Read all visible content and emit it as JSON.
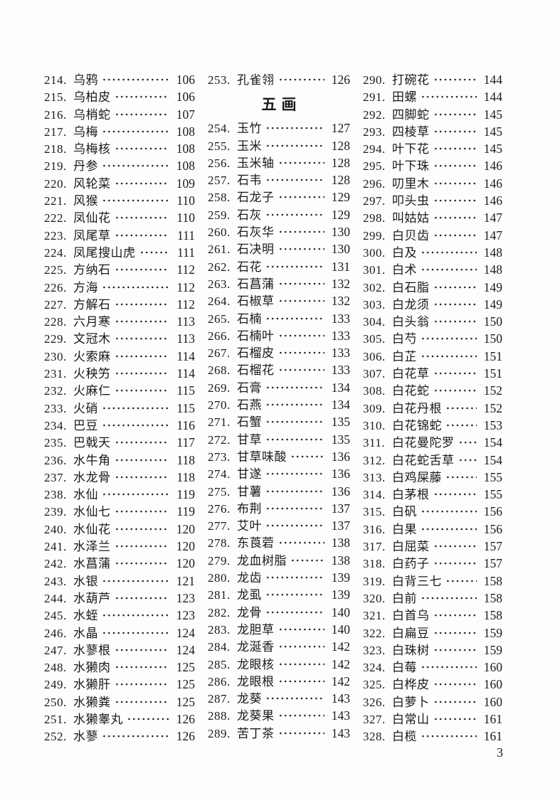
{
  "page": {
    "number": "3"
  },
  "colors": {
    "ink": "#1a1a1a",
    "paper": "#fdfdfd"
  },
  "section": {
    "header": "五画"
  },
  "columns": [
    {
      "items": [
        {
          "no": "214.",
          "name": "乌鸦",
          "page": "106"
        },
        {
          "no": "215.",
          "name": "乌柏皮",
          "page": "106"
        },
        {
          "no": "216.",
          "name": "乌梢蛇",
          "page": "107"
        },
        {
          "no": "217.",
          "name": "乌梅",
          "page": "108"
        },
        {
          "no": "218.",
          "name": "乌梅核",
          "page": "108"
        },
        {
          "no": "219.",
          "name": "丹参",
          "page": "108"
        },
        {
          "no": "220.",
          "name": "风轮菜",
          "page": "109"
        },
        {
          "no": "221.",
          "name": "风猴",
          "page": "110"
        },
        {
          "no": "222.",
          "name": "凤仙花",
          "page": "110"
        },
        {
          "no": "223.",
          "name": "凤尾草",
          "page": "111"
        },
        {
          "no": "224.",
          "name": "凤尾搜山虎",
          "page": "111"
        },
        {
          "no": "225.",
          "name": "方纳石",
          "page": "112"
        },
        {
          "no": "226.",
          "name": "方海",
          "page": "112"
        },
        {
          "no": "227.",
          "name": "方解石",
          "page": "112"
        },
        {
          "no": "228.",
          "name": "六月寒",
          "page": "113"
        },
        {
          "no": "229.",
          "name": "文冠木",
          "page": "113"
        },
        {
          "no": "230.",
          "name": "火索麻",
          "page": "114"
        },
        {
          "no": "231.",
          "name": "火秧竻",
          "page": "114"
        },
        {
          "no": "232.",
          "name": "火麻仁",
          "page": "115"
        },
        {
          "no": "233.",
          "name": "火硝",
          "page": "115"
        },
        {
          "no": "234.",
          "name": "巴豆",
          "page": "116"
        },
        {
          "no": "235.",
          "name": "巴戟天",
          "page": "117"
        },
        {
          "no": "236.",
          "name": "水牛角",
          "page": "118"
        },
        {
          "no": "237.",
          "name": "水龙骨",
          "page": "118"
        },
        {
          "no": "238.",
          "name": "水仙",
          "page": "119"
        },
        {
          "no": "239.",
          "name": "水仙七",
          "page": "119"
        },
        {
          "no": "240.",
          "name": "水仙花",
          "page": "120"
        },
        {
          "no": "241.",
          "name": "水泽兰",
          "page": "120"
        },
        {
          "no": "242.",
          "name": "水菖蒲",
          "page": "120"
        },
        {
          "no": "243.",
          "name": "水银",
          "page": "121"
        },
        {
          "no": "244.",
          "name": "水葫芦",
          "page": "123"
        },
        {
          "no": "245.",
          "name": "水蛭",
          "page": "123"
        },
        {
          "no": "246.",
          "name": "水晶",
          "page": "124"
        },
        {
          "no": "247.",
          "name": "水蓼根",
          "page": "124"
        },
        {
          "no": "248.",
          "name": "水獭肉",
          "page": "125"
        },
        {
          "no": "249.",
          "name": "水獭肝",
          "page": "125"
        },
        {
          "no": "250.",
          "name": "水獭粪",
          "page": "125"
        },
        {
          "no": "251.",
          "name": "水獭睾丸",
          "page": "126"
        },
        {
          "no": "252.",
          "name": "水蓼",
          "page": "126"
        }
      ]
    },
    {
      "items": [
        {
          "no": "253.",
          "name": "孔雀翎",
          "page": "126"
        },
        {
          "section": "五画"
        },
        {
          "no": "254.",
          "name": "玉竹",
          "page": "127"
        },
        {
          "no": "255.",
          "name": "玉米",
          "page": "128"
        },
        {
          "no": "256.",
          "name": "玉米轴",
          "page": "128"
        },
        {
          "no": "257.",
          "name": "石韦",
          "page": "128"
        },
        {
          "no": "258.",
          "name": "石龙子",
          "page": "129"
        },
        {
          "no": "259.",
          "name": "石灰",
          "page": "129"
        },
        {
          "no": "260.",
          "name": "石灰华",
          "page": "130"
        },
        {
          "no": "261.",
          "name": "石决明",
          "page": "130"
        },
        {
          "no": "262.",
          "name": "石花",
          "page": "131"
        },
        {
          "no": "263.",
          "name": "石菖蒲",
          "page": "132"
        },
        {
          "no": "264.",
          "name": "石椒草",
          "page": "132"
        },
        {
          "no": "265.",
          "name": "石楠",
          "page": "133"
        },
        {
          "no": "266.",
          "name": "石楠叶",
          "page": "133"
        },
        {
          "no": "267.",
          "name": "石榴皮",
          "page": "133"
        },
        {
          "no": "268.",
          "name": "石榴花",
          "page": "133"
        },
        {
          "no": "269.",
          "name": "石膏",
          "page": "134"
        },
        {
          "no": "270.",
          "name": "石燕",
          "page": "134"
        },
        {
          "no": "271.",
          "name": "石蟹",
          "page": "135"
        },
        {
          "no": "272.",
          "name": "甘草",
          "page": "135"
        },
        {
          "no": "273.",
          "name": "甘草味酸",
          "page": "136"
        },
        {
          "no": "274.",
          "name": "甘遂",
          "page": "136"
        },
        {
          "no": "275.",
          "name": "甘薯",
          "page": "136"
        },
        {
          "no": "276.",
          "name": "布荆",
          "page": "137"
        },
        {
          "no": "277.",
          "name": "艾叶",
          "page": "137"
        },
        {
          "no": "278.",
          "name": "东莨菪",
          "page": "138"
        },
        {
          "no": "279.",
          "name": "龙血树脂",
          "page": "138"
        },
        {
          "no": "280.",
          "name": "龙齿",
          "page": "139"
        },
        {
          "no": "281.",
          "name": "龙虱",
          "page": "139"
        },
        {
          "no": "282.",
          "name": "龙骨",
          "page": "140"
        },
        {
          "no": "283.",
          "name": "龙胆草",
          "page": "140"
        },
        {
          "no": "284.",
          "name": "龙涎香",
          "page": "142"
        },
        {
          "no": "285.",
          "name": "龙眼核",
          "page": "142"
        },
        {
          "no": "286.",
          "name": "龙眼根",
          "page": "142"
        },
        {
          "no": "287.",
          "name": "龙葵",
          "page": "143"
        },
        {
          "no": "288.",
          "name": "龙葵果",
          "page": "143"
        },
        {
          "no": "289.",
          "name": "苦丁茶",
          "page": "143"
        }
      ]
    },
    {
      "items": [
        {
          "no": "290.",
          "name": "打碗花",
          "page": "144"
        },
        {
          "no": "291.",
          "name": "田螺",
          "page": "144"
        },
        {
          "no": "292.",
          "name": "四脚蛇",
          "page": "145"
        },
        {
          "no": "293.",
          "name": "四棱草",
          "page": "145"
        },
        {
          "no": "294.",
          "name": "叶下花",
          "page": "145"
        },
        {
          "no": "295.",
          "name": "叶下珠",
          "page": "146"
        },
        {
          "no": "296.",
          "name": "叨里木",
          "page": "146"
        },
        {
          "no": "297.",
          "name": "叩头虫",
          "page": "146"
        },
        {
          "no": "298.",
          "name": "叫姑姑",
          "page": "147"
        },
        {
          "no": "299.",
          "name": "白贝齿",
          "page": "147"
        },
        {
          "no": "300.",
          "name": "白及",
          "page": "148"
        },
        {
          "no": "301.",
          "name": "白术",
          "page": "148"
        },
        {
          "no": "302.",
          "name": "白石脂",
          "page": "149"
        },
        {
          "no": "303.",
          "name": "白龙须",
          "page": "149"
        },
        {
          "no": "304.",
          "name": "白头翁",
          "page": "150"
        },
        {
          "no": "305.",
          "name": "白芍",
          "page": "150"
        },
        {
          "no": "306.",
          "name": "白芷",
          "page": "151"
        },
        {
          "no": "307.",
          "name": "白花草",
          "page": "151"
        },
        {
          "no": "308.",
          "name": "白花蛇",
          "page": "152"
        },
        {
          "no": "309.",
          "name": "白花丹根",
          "page": "152"
        },
        {
          "no": "310.",
          "name": "白花锦蛇",
          "page": "153"
        },
        {
          "no": "311.",
          "name": "白花曼陀罗",
          "page": "154"
        },
        {
          "no": "312.",
          "name": "白花蛇舌草",
          "page": "154"
        },
        {
          "no": "313.",
          "name": "白鸡屎藤",
          "page": "155"
        },
        {
          "no": "314.",
          "name": "白茅根",
          "page": "155"
        },
        {
          "no": "315.",
          "name": "白矾",
          "page": "156"
        },
        {
          "no": "316.",
          "name": "白果",
          "page": "156"
        },
        {
          "no": "317.",
          "name": "白屈菜",
          "page": "157"
        },
        {
          "no": "318.",
          "name": "白药子",
          "page": "157"
        },
        {
          "no": "319.",
          "name": "白背三七",
          "page": "158"
        },
        {
          "no": "320.",
          "name": "白前",
          "page": "158"
        },
        {
          "no": "321.",
          "name": "白首乌",
          "page": "158"
        },
        {
          "no": "322.",
          "name": "白扁豆",
          "page": "159"
        },
        {
          "no": "323.",
          "name": "白珠树",
          "page": "159"
        },
        {
          "no": "324.",
          "name": "白莓",
          "page": "160"
        },
        {
          "no": "325.",
          "name": "白桦皮",
          "page": "160"
        },
        {
          "no": "326.",
          "name": "白萝卜",
          "page": "160"
        },
        {
          "no": "327.",
          "name": "白常山",
          "page": "161"
        },
        {
          "no": "328.",
          "name": "白榄",
          "page": "161"
        }
      ]
    }
  ]
}
